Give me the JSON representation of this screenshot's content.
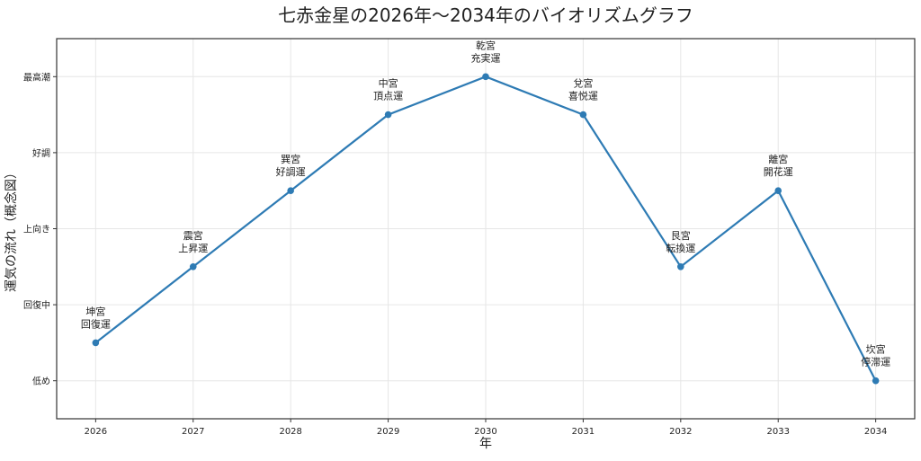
{
  "chart_data": {
    "type": "line",
    "title": "七赤金星の2026年～2034年のバイオリズムグラフ",
    "xlabel": "年",
    "ylabel": "運気の流れ（概念図）",
    "x": [
      2026,
      2027,
      2028,
      2029,
      2030,
      2031,
      2032,
      2033,
      2034
    ],
    "y": [
      1.5,
      2.5,
      3.5,
      4.5,
      5,
      4.5,
      2.5,
      3.5,
      1
    ],
    "xlim": [
      2025.6,
      2034.4
    ],
    "ylim": [
      0.5,
      5.5
    ],
    "ytick_values": [
      1,
      2,
      3,
      4,
      5
    ],
    "ytick_labels": [
      "低め",
      "回復中",
      "上向き",
      "好調",
      "最高潮"
    ],
    "xtick_labels": [
      "2026",
      "2027",
      "2028",
      "2029",
      "2030",
      "2031",
      "2032",
      "2033",
      "2034"
    ],
    "annotations": [
      [
        "坤宮",
        "回復運"
      ],
      [
        "震宮",
        "上昇運"
      ],
      [
        "巽宮",
        "好調運"
      ],
      [
        "中宮",
        "頂点運"
      ],
      [
        "乾宮",
        "充実運"
      ],
      [
        "兌宮",
        "喜悦運"
      ],
      [
        "艮宮",
        "転換運"
      ],
      [
        "離宮",
        "開花運"
      ],
      [
        "坎宮",
        "停滞運"
      ]
    ],
    "grid": true,
    "line_color": "#2e7bb4"
  }
}
